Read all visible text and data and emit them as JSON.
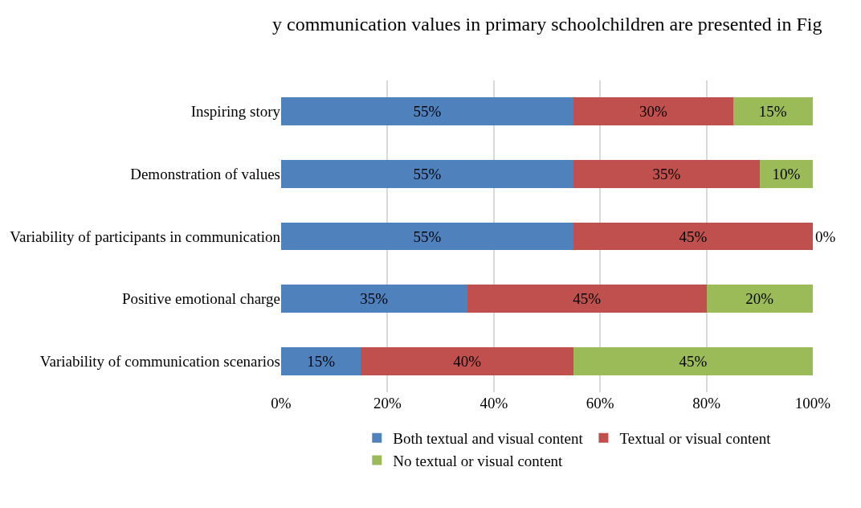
{
  "chart_data": {
    "type": "bar",
    "orientation": "horizontal",
    "stacked": true,
    "annotations": [
      "y communication values in primary schoolchildren are presented in Fig"
    ],
    "categories": [
      "Inspiring story",
      "Demonstration of values",
      "Variability of participants in communication",
      "Positive emotional charge",
      "Variability of communication scenarios"
    ],
    "series": [
      {
        "name": "Both textual and visual content",
        "color": "#4f81bd",
        "values": [
          55,
          55,
          55,
          35,
          15
        ],
        "value_labels": [
          "55%",
          "55%",
          "55%",
          "35%",
          "15%"
        ]
      },
      {
        "name": "Textual or visual content",
        "color": "#c0504d",
        "values": [
          30,
          35,
          45,
          45,
          40
        ],
        "value_labels": [
          "30%",
          "35%",
          "45%",
          "45%",
          "40%"
        ]
      },
      {
        "name": "No textual or visual content",
        "color": "#9bbb59",
        "values": [
          15,
          10,
          0,
          20,
          45
        ],
        "value_labels": [
          "15%",
          "10%",
          "0%",
          "20%",
          "45%"
        ]
      }
    ],
    "xlim": [
      0,
      100
    ],
    "xticks": [
      {
        "value": 0,
        "label": "0%"
      },
      {
        "value": 20,
        "label": "20%"
      },
      {
        "value": 40,
        "label": "40%"
      },
      {
        "value": 60,
        "label": "60%"
      },
      {
        "value": 80,
        "label": "80%"
      },
      {
        "value": 100,
        "label": "100%"
      }
    ],
    "grid": "x",
    "legend": "bottom"
  }
}
